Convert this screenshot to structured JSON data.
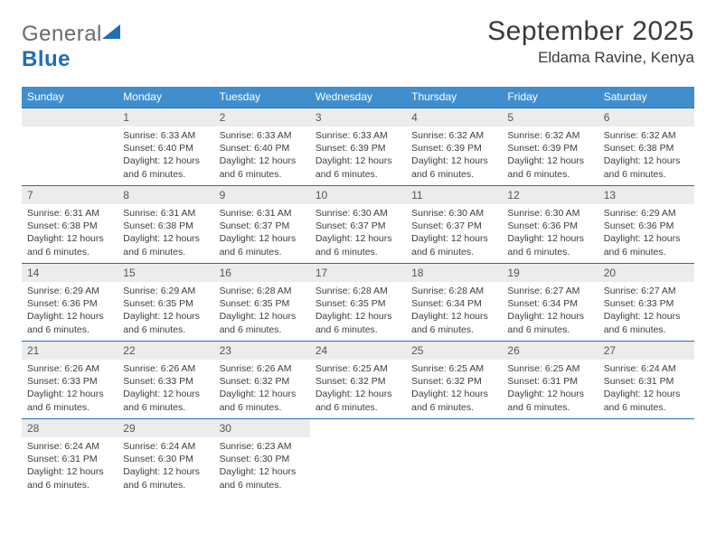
{
  "brand": {
    "word1": "General",
    "word2": "Blue",
    "tri_color": "#1f6fb2",
    "text_color": "#6b6b6b"
  },
  "title": {
    "month": "September 2025",
    "location": "Eldama Ravine, Kenya"
  },
  "colors": {
    "header_bg": "#3f8fcf",
    "header_text": "#ffffff",
    "daynum_bg": "#ececec",
    "daynum_text": "#555555",
    "body_text": "#3d3d3d",
    "rule": "#1f6fb2",
    "page_bg": "#ffffff"
  },
  "fonts": {
    "title_size": 30,
    "location_size": 17,
    "header_size": 12,
    "daynum_size": 12,
    "body_size": 10.5
  },
  "weekdays": [
    "Sunday",
    "Monday",
    "Tuesday",
    "Wednesday",
    "Thursday",
    "Friday",
    "Saturday"
  ],
  "weeks": [
    [
      null,
      {
        "n": "1",
        "sr": "Sunrise: 6:33 AM",
        "ss": "Sunset: 6:40 PM",
        "dl": "Daylight: 12 hours and 6 minutes."
      },
      {
        "n": "2",
        "sr": "Sunrise: 6:33 AM",
        "ss": "Sunset: 6:40 PM",
        "dl": "Daylight: 12 hours and 6 minutes."
      },
      {
        "n": "3",
        "sr": "Sunrise: 6:33 AM",
        "ss": "Sunset: 6:39 PM",
        "dl": "Daylight: 12 hours and 6 minutes."
      },
      {
        "n": "4",
        "sr": "Sunrise: 6:32 AM",
        "ss": "Sunset: 6:39 PM",
        "dl": "Daylight: 12 hours and 6 minutes."
      },
      {
        "n": "5",
        "sr": "Sunrise: 6:32 AM",
        "ss": "Sunset: 6:39 PM",
        "dl": "Daylight: 12 hours and 6 minutes."
      },
      {
        "n": "6",
        "sr": "Sunrise: 6:32 AM",
        "ss": "Sunset: 6:38 PM",
        "dl": "Daylight: 12 hours and 6 minutes."
      }
    ],
    [
      {
        "n": "7",
        "sr": "Sunrise: 6:31 AM",
        "ss": "Sunset: 6:38 PM",
        "dl": "Daylight: 12 hours and 6 minutes."
      },
      {
        "n": "8",
        "sr": "Sunrise: 6:31 AM",
        "ss": "Sunset: 6:38 PM",
        "dl": "Daylight: 12 hours and 6 minutes."
      },
      {
        "n": "9",
        "sr": "Sunrise: 6:31 AM",
        "ss": "Sunset: 6:37 PM",
        "dl": "Daylight: 12 hours and 6 minutes."
      },
      {
        "n": "10",
        "sr": "Sunrise: 6:30 AM",
        "ss": "Sunset: 6:37 PM",
        "dl": "Daylight: 12 hours and 6 minutes."
      },
      {
        "n": "11",
        "sr": "Sunrise: 6:30 AM",
        "ss": "Sunset: 6:37 PM",
        "dl": "Daylight: 12 hours and 6 minutes."
      },
      {
        "n": "12",
        "sr": "Sunrise: 6:30 AM",
        "ss": "Sunset: 6:36 PM",
        "dl": "Daylight: 12 hours and 6 minutes."
      },
      {
        "n": "13",
        "sr": "Sunrise: 6:29 AM",
        "ss": "Sunset: 6:36 PM",
        "dl": "Daylight: 12 hours and 6 minutes."
      }
    ],
    [
      {
        "n": "14",
        "sr": "Sunrise: 6:29 AM",
        "ss": "Sunset: 6:36 PM",
        "dl": "Daylight: 12 hours and 6 minutes."
      },
      {
        "n": "15",
        "sr": "Sunrise: 6:29 AM",
        "ss": "Sunset: 6:35 PM",
        "dl": "Daylight: 12 hours and 6 minutes."
      },
      {
        "n": "16",
        "sr": "Sunrise: 6:28 AM",
        "ss": "Sunset: 6:35 PM",
        "dl": "Daylight: 12 hours and 6 minutes."
      },
      {
        "n": "17",
        "sr": "Sunrise: 6:28 AM",
        "ss": "Sunset: 6:35 PM",
        "dl": "Daylight: 12 hours and 6 minutes."
      },
      {
        "n": "18",
        "sr": "Sunrise: 6:28 AM",
        "ss": "Sunset: 6:34 PM",
        "dl": "Daylight: 12 hours and 6 minutes."
      },
      {
        "n": "19",
        "sr": "Sunrise: 6:27 AM",
        "ss": "Sunset: 6:34 PM",
        "dl": "Daylight: 12 hours and 6 minutes."
      },
      {
        "n": "20",
        "sr": "Sunrise: 6:27 AM",
        "ss": "Sunset: 6:33 PM",
        "dl": "Daylight: 12 hours and 6 minutes."
      }
    ],
    [
      {
        "n": "21",
        "sr": "Sunrise: 6:26 AM",
        "ss": "Sunset: 6:33 PM",
        "dl": "Daylight: 12 hours and 6 minutes."
      },
      {
        "n": "22",
        "sr": "Sunrise: 6:26 AM",
        "ss": "Sunset: 6:33 PM",
        "dl": "Daylight: 12 hours and 6 minutes."
      },
      {
        "n": "23",
        "sr": "Sunrise: 6:26 AM",
        "ss": "Sunset: 6:32 PM",
        "dl": "Daylight: 12 hours and 6 minutes."
      },
      {
        "n": "24",
        "sr": "Sunrise: 6:25 AM",
        "ss": "Sunset: 6:32 PM",
        "dl": "Daylight: 12 hours and 6 minutes."
      },
      {
        "n": "25",
        "sr": "Sunrise: 6:25 AM",
        "ss": "Sunset: 6:32 PM",
        "dl": "Daylight: 12 hours and 6 minutes."
      },
      {
        "n": "26",
        "sr": "Sunrise: 6:25 AM",
        "ss": "Sunset: 6:31 PM",
        "dl": "Daylight: 12 hours and 6 minutes."
      },
      {
        "n": "27",
        "sr": "Sunrise: 6:24 AM",
        "ss": "Sunset: 6:31 PM",
        "dl": "Daylight: 12 hours and 6 minutes."
      }
    ],
    [
      {
        "n": "28",
        "sr": "Sunrise: 6:24 AM",
        "ss": "Sunset: 6:31 PM",
        "dl": "Daylight: 12 hours and 6 minutes."
      },
      {
        "n": "29",
        "sr": "Sunrise: 6:24 AM",
        "ss": "Sunset: 6:30 PM",
        "dl": "Daylight: 12 hours and 6 minutes."
      },
      {
        "n": "30",
        "sr": "Sunrise: 6:23 AM",
        "ss": "Sunset: 6:30 PM",
        "dl": "Daylight: 12 hours and 6 minutes."
      },
      null,
      null,
      null,
      null
    ]
  ]
}
